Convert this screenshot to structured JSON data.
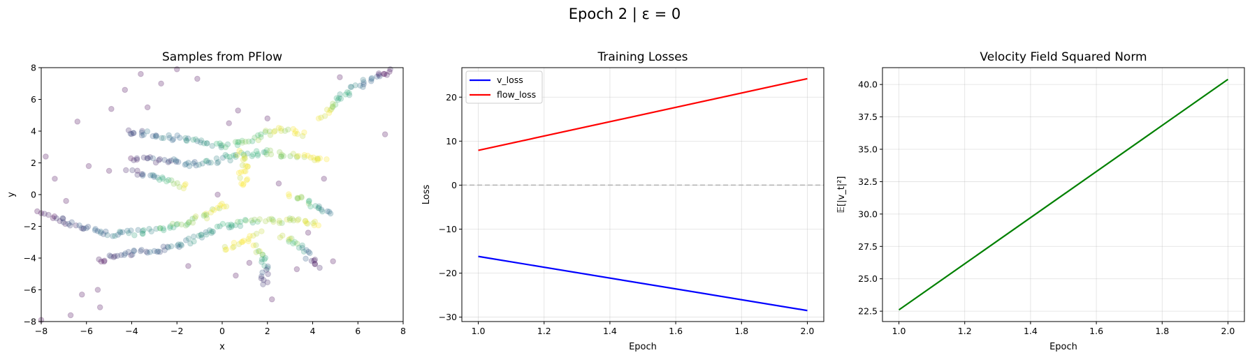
{
  "figure": {
    "suptitle": "Epoch 2 | ε = 0"
  },
  "chart_data": [
    {
      "type": "scatter",
      "title": "Samples from PFlow",
      "xlabel": "x",
      "ylabel": "y",
      "xlim": [
        -8,
        8
      ],
      "ylim": [
        -8,
        8
      ],
      "xticks": [
        -8,
        -6,
        -4,
        -2,
        0,
        2,
        4,
        6,
        8
      ],
      "yticks": [
        -8,
        -6,
        -4,
        -2,
        0,
        2,
        4,
        6,
        8
      ],
      "grid": false,
      "colormap": [
        "#440154",
        "#31688e",
        "#35b779",
        "#fde725"
      ],
      "point_alpha": 0.25,
      "curves": [
        {
          "points": [
            [
              -8.0,
              -1.2
            ],
            [
              -6.5,
              -1.9
            ],
            [
              -5.0,
              -2.5
            ],
            [
              -3.0,
              -2.3
            ],
            [
              -1.5,
              -1.8
            ],
            [
              -0.5,
              -1.1
            ],
            [
              0.3,
              -0.6
            ]
          ],
          "c_start": 0.0,
          "c_end": 1.0
        },
        {
          "points": [
            [
              -5.5,
              -4.1
            ],
            [
              -3.5,
              -3.6
            ],
            [
              -2.0,
              -3.2
            ],
            [
              -1.0,
              -2.6
            ],
            [
              0.0,
              -2.0
            ],
            [
              1.5,
              -1.7
            ],
            [
              3.0,
              -1.6
            ],
            [
              4.3,
              -1.8
            ]
          ],
          "c_start": 0.05,
          "c_end": 1.0
        },
        {
          "points": [
            [
              -4.0,
              2.3
            ],
            [
              -2.5,
              2.1
            ],
            [
              -1.0,
              1.9
            ],
            [
              0.5,
              2.4
            ],
            [
              2.0,
              2.7
            ],
            [
              3.5,
              2.4
            ],
            [
              4.6,
              2.1
            ]
          ],
          "c_start": 0.1,
          "c_end": 1.0
        },
        {
          "points": [
            [
              -4.2,
              4.0
            ],
            [
              -2.5,
              3.7
            ],
            [
              -1.0,
              3.3
            ],
            [
              0.2,
              3.1
            ],
            [
              1.5,
              3.6
            ],
            [
              2.7,
              4.2
            ],
            [
              3.5,
              3.8
            ]
          ],
          "c_start": 0.2,
          "c_end": 1.0
        },
        {
          "points": [
            [
              4.4,
              4.8
            ],
            [
              5.3,
              6.3
            ],
            [
              6.3,
              7.0
            ],
            [
              7.5,
              7.9
            ]
          ],
          "c_start": 1.0,
          "c_end": 0.0
        },
        {
          "points": [
            [
              -4.1,
              1.4
            ],
            [
              -3.0,
              1.2
            ],
            [
              -2.2,
              0.8
            ],
            [
              -1.6,
              0.5
            ]
          ],
          "c_start": 0.0,
          "c_end": 1.0
        },
        {
          "points": [
            [
              2.6,
              -2.6
            ],
            [
              3.2,
              -3.1
            ],
            [
              3.8,
              -3.8
            ],
            [
              4.2,
              -4.5
            ]
          ],
          "c_start": 1.0,
          "c_end": 0.0
        },
        {
          "points": [
            [
              1.4,
              -3.2
            ],
            [
              1.8,
              -4.1
            ],
            [
              1.9,
              -5.0
            ],
            [
              1.9,
              -5.6
            ]
          ],
          "c_start": 1.0,
          "c_end": 0.0
        },
        {
          "points": [
            [
              3.0,
              0.0
            ],
            [
              3.7,
              -0.4
            ],
            [
              4.3,
              -0.8
            ],
            [
              4.8,
              -1.2
            ]
          ],
          "c_start": 1.0,
          "c_end": 0.3
        },
        {
          "points": [
            [
              1.0,
              0.5
            ],
            [
              0.9,
              1.3
            ],
            [
              1.0,
              2.0
            ],
            [
              0.8,
              2.7
            ]
          ],
          "c_start": 1.0,
          "c_end": 1.0
        },
        {
          "points": [
            [
              0.1,
              -3.4
            ],
            [
              0.9,
              -3.0
            ],
            [
              1.6,
              -2.4
            ]
          ],
          "c_start": 1.0,
          "c_end": 1.0
        }
      ],
      "scatter_extra": [
        [
          -6.4,
          4.6
        ],
        [
          -4.9,
          5.4
        ],
        [
          -3.6,
          7.6
        ],
        [
          -2.7,
          7.0
        ],
        [
          -1.1,
          7.3
        ],
        [
          -2.0,
          7.9
        ],
        [
          -5.0,
          1.5
        ],
        [
          -7.4,
          1.0
        ],
        [
          -7.8,
          2.4
        ],
        [
          -6.9,
          -0.4
        ],
        [
          -6.2,
          -6.3
        ],
        [
          -5.5,
          -6.0
        ],
        [
          -5.4,
          -7.1
        ],
        [
          -6.7,
          -7.6
        ],
        [
          -8.0,
          -7.9
        ],
        [
          0.6,
          -5.1
        ],
        [
          2.2,
          -6.6
        ],
        [
          3.3,
          -4.7
        ],
        [
          4.9,
          -4.2
        ],
        [
          7.2,
          3.8
        ],
        [
          5.2,
          7.4
        ],
        [
          -3.3,
          5.5
        ],
        [
          0.3,
          4.5
        ],
        [
          2.0,
          4.8
        ],
        [
          -4.3,
          6.6
        ],
        [
          -0.2,
          0.0
        ],
        [
          2.5,
          0.7
        ],
        [
          -1.5,
          -4.5
        ],
        [
          4.5,
          1.0
        ],
        [
          0.7,
          5.3
        ],
        [
          3.8,
          -2.4
        ],
        [
          -5.9,
          1.8
        ],
        [
          1.2,
          -4.3
        ]
      ]
    },
    {
      "type": "line",
      "title": "Training Losses",
      "xlabel": "Epoch",
      "ylabel": "Loss",
      "xlim": [
        0.95,
        2.05
      ],
      "ylim": [
        -31.0,
        26.7
      ],
      "xticks": [
        1.0,
        1.2,
        1.4,
        1.6,
        1.8,
        2.0
      ],
      "yticks": [
        -30,
        -20,
        -10,
        0,
        10,
        20
      ],
      "grid": true,
      "legend_position": "upper left",
      "hline": {
        "y": 0,
        "color": "#b0b0b0",
        "style": "dashed"
      },
      "x": [
        1.0,
        2.0
      ],
      "series": [
        {
          "name": "v_loss",
          "values": [
            -16.2,
            -28.5
          ],
          "color": "#0000ff"
        },
        {
          "name": "flow_loss",
          "values": [
            7.9,
            24.2
          ],
          "color": "#ff0000"
        }
      ]
    },
    {
      "type": "line",
      "title": "Velocity Field Squared Norm",
      "xlabel": "Epoch",
      "ylabel": "𝔼[|v_t|²]",
      "xlim": [
        0.95,
        2.05
      ],
      "ylim": [
        21.7,
        41.3
      ],
      "xticks": [
        1.0,
        1.2,
        1.4,
        1.6,
        1.8,
        2.0
      ],
      "yticks": [
        22.5,
        25.0,
        27.5,
        30.0,
        32.5,
        35.0,
        37.5,
        40.0
      ],
      "grid": true,
      "x": [
        1.0,
        2.0
      ],
      "series": [
        {
          "values": [
            22.6,
            40.4
          ],
          "color": "#008000"
        }
      ]
    }
  ]
}
